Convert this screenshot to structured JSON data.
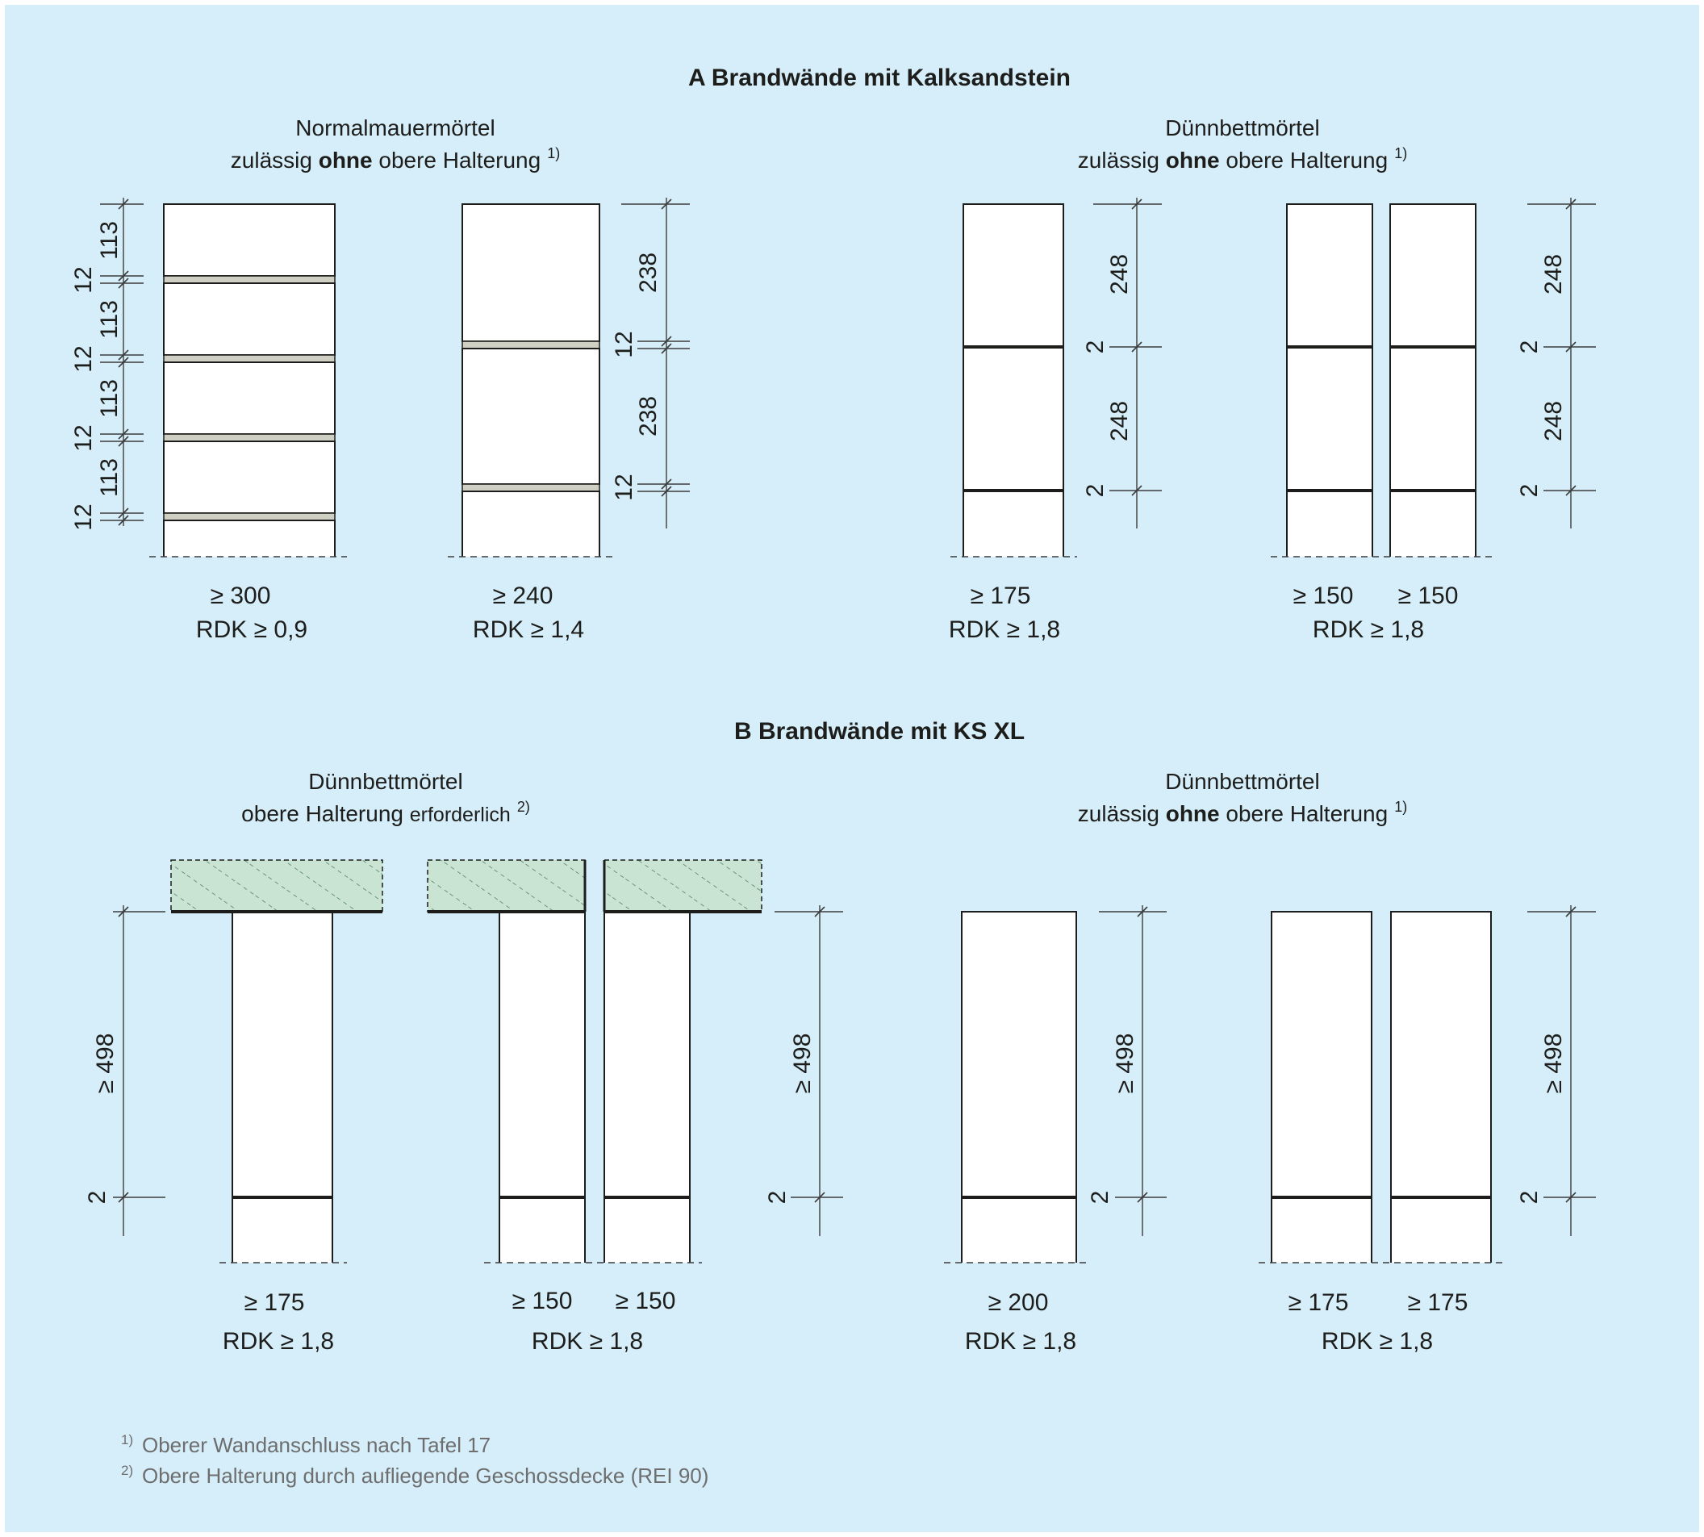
{
  "colors": {
    "background": "#d5eef9",
    "joint": "#cfcfc3",
    "slab": "#c9e4d3"
  },
  "section_a": {
    "title": "A   Brandwände mit Kalksandstein",
    "left": {
      "heading1": "Normalmauermörtel",
      "heading2_pre": "zulässig ",
      "heading2_bold": "ohne",
      "heading2_post": " obere Halterung",
      "heading2_sup": "1)",
      "wall1": {
        "thickness": "≥ 300",
        "rdk": "RDK ≥ 0,9",
        "brick": "113",
        "joint": "12"
      },
      "wall2": {
        "thickness": "≥ 240",
        "rdk": "RDK ≥ 1,4",
        "brick": "238",
        "joint": "12"
      }
    },
    "right": {
      "heading1": "Dünnbettmörtel",
      "heading2_pre": "zulässig ",
      "heading2_bold": "ohne",
      "heading2_post": " obere Halterung",
      "heading2_sup": "1)",
      "wall3": {
        "thickness": "≥ 175",
        "rdk": "RDK ≥ 1,8",
        "brick": "248",
        "joint": "2"
      },
      "wall4": {
        "thickness_left": "≥ 150",
        "thickness_right": "≥ 150",
        "rdk": "RDK ≥ 1,8",
        "brick": "248",
        "joint": "2"
      }
    }
  },
  "section_b": {
    "title": "B   Brandwände mit KS XL",
    "left": {
      "heading1": "Dünnbettmörtel",
      "heading2_pre": "obere Halterung ",
      "heading2_small": "erforderlich",
      "heading2_sup": "2)",
      "wall5": {
        "thickness": "≥ 175",
        "rdk": "RDK ≥ 1,8",
        "height": "≥ 498",
        "joint": "2"
      },
      "wall6": {
        "thickness_left": "≥ 150",
        "thickness_right": "≥ 150",
        "rdk": "RDK ≥ 1,8",
        "height": "≥ 498",
        "joint": "2"
      }
    },
    "right": {
      "heading1": "Dünnbettmörtel",
      "heading2_pre": "zulässig ",
      "heading2_bold": "ohne",
      "heading2_post": " obere Halterung",
      "heading2_sup": "1)",
      "wall7": {
        "thickness": "≥ 200",
        "rdk": "RDK ≥ 1,8",
        "height": "≥ 498",
        "joint": "2"
      },
      "wall8": {
        "thickness_left": "≥ 175",
        "thickness_right": "≥ 175",
        "rdk": "RDK ≥ 1,8",
        "height": "≥ 498",
        "joint": "2"
      }
    }
  },
  "footnotes": [
    {
      "mark": "1)",
      "text": "Oberer Wandanschluss nach Tafel 17"
    },
    {
      "mark": "2)",
      "text": "Obere Halterung durch aufliegende Geschossdecke (REI 90)"
    }
  ]
}
